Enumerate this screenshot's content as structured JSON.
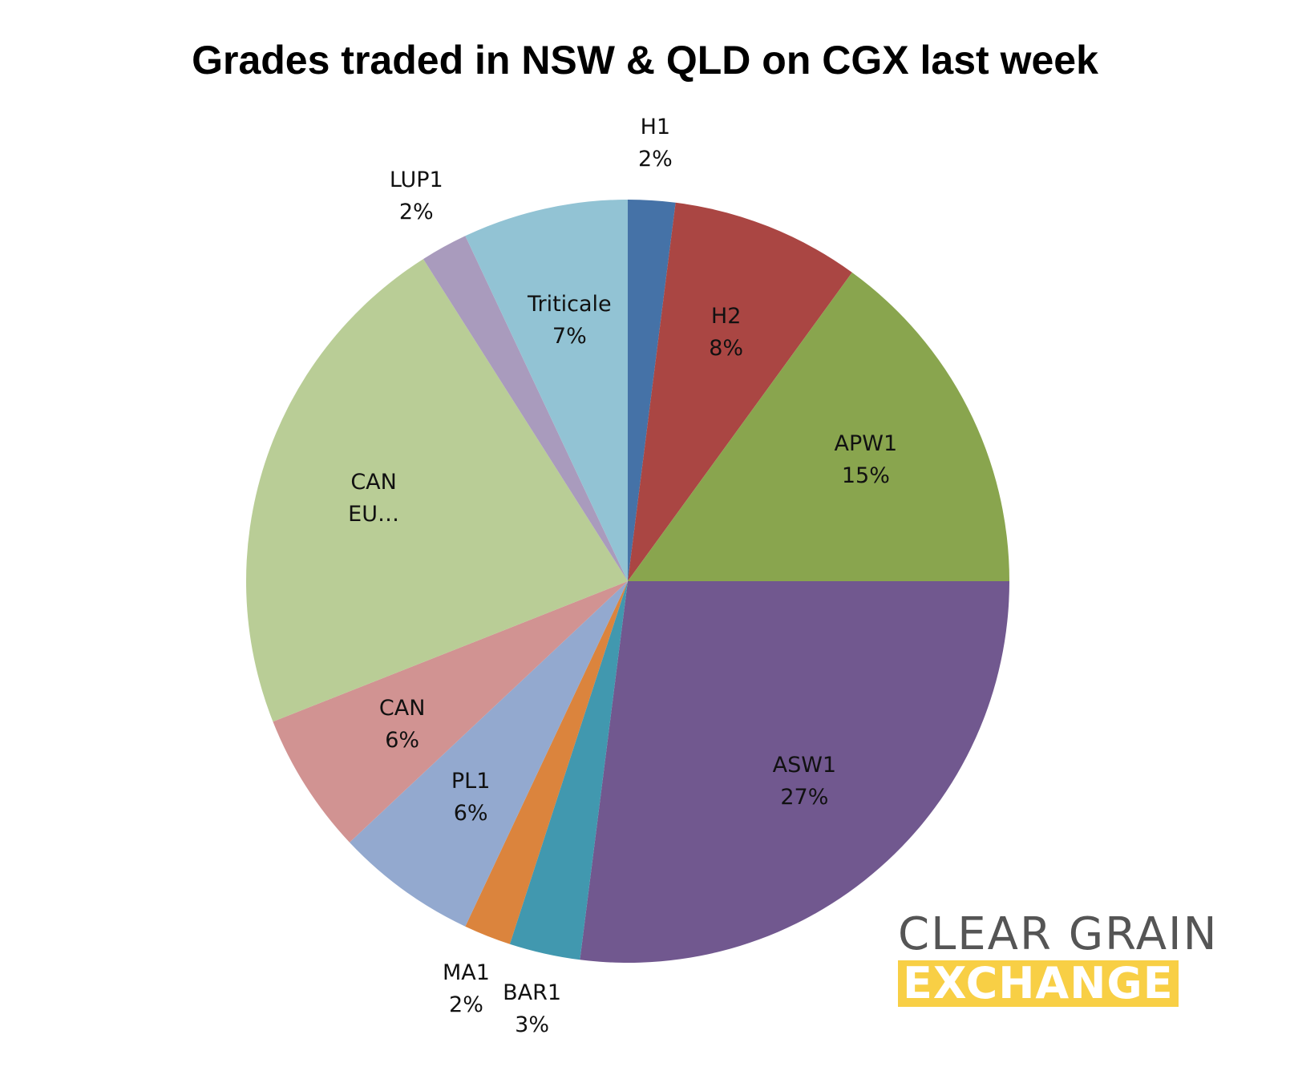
{
  "chart_data": {
    "type": "pie",
    "title": "Grades traded in NSW & QLD on CGX last week",
    "categories": [
      "H1",
      "H2",
      "APW1",
      "ASW1",
      "BAR1",
      "MA1",
      "PL1",
      "CAN",
      "CAN EU…",
      "LUP1",
      "Triticale"
    ],
    "values": [
      2,
      8,
      15,
      27,
      3,
      2,
      6,
      6,
      22,
      2,
      7
    ],
    "value_labels": [
      "2%",
      "8%",
      "15%",
      "27%",
      "3%",
      "2%",
      "6%",
      "6%",
      null,
      "2%",
      "7%"
    ],
    "colors": [
      "#4572a7",
      "#aa4643",
      "#89a54e",
      "#71588f",
      "#4198af",
      "#db843d",
      "#93a9cf",
      "#d19392",
      "#b9cd96",
      "#a99bbd",
      "#92c3d4"
    ]
  },
  "logo": {
    "line1": "CLEAR GRAIN",
    "line2": "EXCHANGE"
  }
}
